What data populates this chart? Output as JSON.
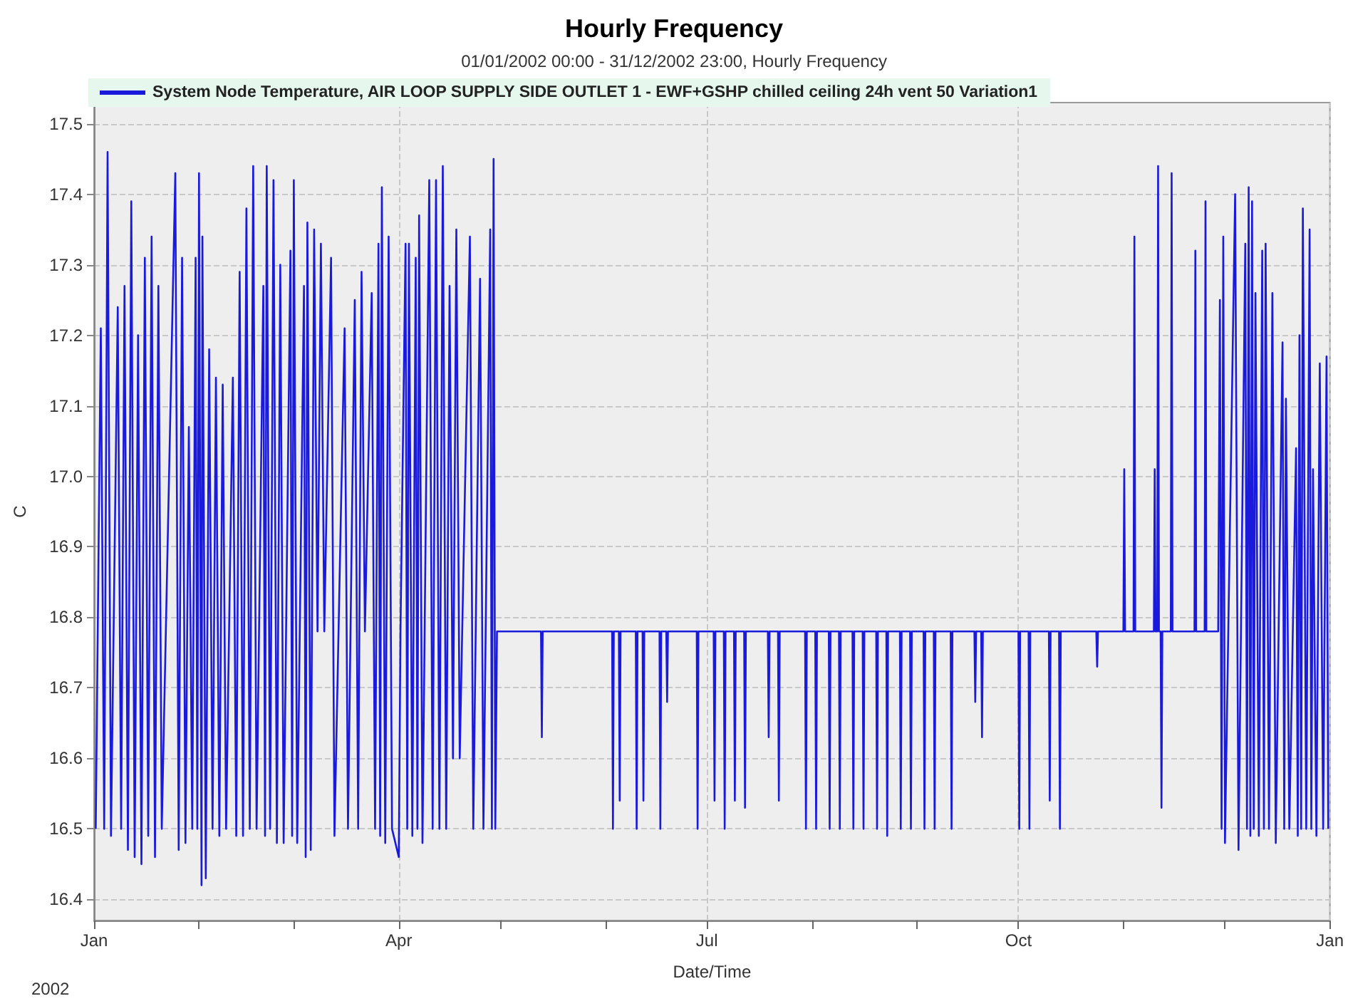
{
  "chart_data": {
    "type": "line",
    "title": "Hourly Frequency",
    "subtitle": "01/01/2002 00:00 - 31/12/2002 23:00, Hourly Frequency",
    "xlabel": "Date/Time",
    "ylabel": "C",
    "annotations": [
      "2002"
    ],
    "xlim": [
      "2002-01-01",
      "2003-01-01"
    ],
    "xticks": [
      {
        "value": "2002-01-01",
        "label": "Jan"
      },
      {
        "value": "2002-02-01",
        "label": null
      },
      {
        "value": "2002-03-01",
        "label": null
      },
      {
        "value": "2002-04-01",
        "label": "Apr"
      },
      {
        "value": "2002-05-01",
        "label": null
      },
      {
        "value": "2002-06-01",
        "label": null
      },
      {
        "value": "2002-07-01",
        "label": "Jul"
      },
      {
        "value": "2002-08-01",
        "label": null
      },
      {
        "value": "2002-09-01",
        "label": null
      },
      {
        "value": "2002-10-01",
        "label": "Oct"
      },
      {
        "value": "2002-11-01",
        "label": null
      },
      {
        "value": "2002-12-01",
        "label": null
      },
      {
        "value": "2003-01-01",
        "label": "Jan"
      }
    ],
    "ylim": [
      16.37,
      17.53
    ],
    "yticks": [
      16.4,
      16.5,
      16.6,
      16.7,
      16.8,
      16.9,
      {
        "value": 17,
        "label": "17.0"
      },
      17.1,
      17.2,
      17.3,
      17.4,
      17.5
    ],
    "grid": true,
    "legend": "top",
    "marker": "none",
    "line_style": "solid",
    "series": [
      {
        "name": "System Node Temperature, AIR LOOP SUPPLY SIDE OUTLET 1 - EWF+GSHP chilled ceiling 24h vent 50 Variation1",
        "color": "#1a1adc",
        "x": [
          "2002-01-01T12:00",
          "2002-01-03",
          "2002-01-04",
          "2002-01-05",
          "2002-01-06",
          "2002-01-08",
          "2002-01-09",
          "2002-01-10",
          "2002-01-11",
          "2002-01-12",
          "2002-01-13",
          "2002-01-14",
          "2002-01-15",
          "2002-01-16",
          "2002-01-17",
          "2002-01-18",
          "2002-01-19",
          "2002-01-20",
          "2002-01-21",
          "2002-01-25",
          "2002-01-26",
          "2002-01-27",
          "2002-01-28",
          "2002-01-29",
          "2002-01-30",
          "2002-01-31",
          "2002-01-31T12:00",
          "2002-02-01",
          "2002-02-01T18:00",
          "2002-02-02",
          "2002-02-03",
          "2002-02-04",
          "2002-02-05",
          "2002-02-06",
          "2002-02-07",
          "2002-02-08",
          "2002-02-09",
          "2002-02-11",
          "2002-02-12",
          "2002-02-13",
          "2002-02-14",
          "2002-02-15",
          "2002-02-16",
          "2002-02-17",
          "2002-02-18",
          "2002-02-20",
          "2002-02-20T12:00",
          "2002-02-21",
          "2002-02-22",
          "2002-02-23",
          "2002-02-24",
          "2002-02-25",
          "2002-02-26",
          "2002-02-28",
          "2002-02-28T12:00",
          "2002-03-01",
          "2002-03-02",
          "2002-03-04",
          "2002-03-04T12:00",
          "2002-03-05",
          "2002-03-06",
          "2002-03-07",
          "2002-03-08",
          "2002-03-09",
          "2002-03-10",
          "2002-03-12",
          "2002-03-13",
          "2002-03-16",
          "2002-03-17",
          "2002-03-19",
          "2002-03-20",
          "2002-03-21",
          "2002-03-22",
          "2002-03-24",
          "2002-03-25",
          "2002-03-26",
          "2002-03-26T12:00",
          "2002-03-27",
          "2002-03-28",
          "2002-03-29",
          "2002-03-30",
          "2002-04-01",
          "2002-04-01T12:00",
          "2002-04-03",
          "2002-04-03T12:00",
          "2002-04-04",
          "2002-04-05",
          "2002-04-06",
          "2002-04-06T12:00",
          "2002-04-07",
          "2002-04-08",
          "2002-04-10",
          "2002-04-11",
          "2002-04-12",
          "2002-04-13",
          "2002-04-14",
          "2002-04-15",
          "2002-04-16",
          "2002-04-17",
          "2002-04-18",
          "2002-04-19",
          "2002-04-22",
          "2002-04-23",
          "2002-04-25",
          "2002-04-26",
          "2002-04-28",
          "2002-04-28T12:00",
          "2002-04-29",
          "2002-04-29T12:00",
          "2002-04-30",
          "2002-05-13",
          "2002-05-13T06:00",
          "2002-05-13T12:00",
          "2002-06-03",
          "2002-06-03T06:00",
          "2002-06-03T12:00",
          "2002-06-05",
          "2002-06-05T06:00",
          "2002-06-05T12:00",
          "2002-06-10",
          "2002-06-10T06:00",
          "2002-06-10T12:00",
          "2002-06-12",
          "2002-06-12T06:00",
          "2002-06-12T12:00",
          "2002-06-17",
          "2002-06-17T06:00",
          "2002-06-17T12:00",
          "2002-06-19",
          "2002-06-19T06:00",
          "2002-06-19T12:00",
          "2002-06-28",
          "2002-06-28T06:00",
          "2002-06-28T12:00",
          "2002-07-03",
          "2002-07-03T06:00",
          "2002-07-03T12:00",
          "2002-07-06",
          "2002-07-06T06:00",
          "2002-07-06T12:00",
          "2002-07-09",
          "2002-07-09T06:00",
          "2002-07-09T12:00",
          "2002-07-12",
          "2002-07-12T06:00",
          "2002-07-12T12:00",
          "2002-07-19",
          "2002-07-19T06:00",
          "2002-07-19T12:00",
          "2002-07-22",
          "2002-07-22T06:00",
          "2002-07-22T12:00",
          "2002-07-30",
          "2002-07-30T06:00",
          "2002-07-30T12:00",
          "2002-08-02",
          "2002-08-02T06:00",
          "2002-08-02T12:00",
          "2002-08-06",
          "2002-08-06T06:00",
          "2002-08-06T12:00",
          "2002-08-09",
          "2002-08-09T06:00",
          "2002-08-09T12:00",
          "2002-08-13",
          "2002-08-13T06:00",
          "2002-08-13T12:00",
          "2002-08-16",
          "2002-08-16T06:00",
          "2002-08-16T12:00",
          "2002-08-20",
          "2002-08-20T06:00",
          "2002-08-20T12:00",
          "2002-08-23",
          "2002-08-23T06:00",
          "2002-08-23T12:00",
          "2002-08-27",
          "2002-08-27T06:00",
          "2002-08-27T12:00",
          "2002-08-30",
          "2002-08-30T06:00",
          "2002-08-30T12:00",
          "2002-09-03",
          "2002-09-03T06:00",
          "2002-09-03T12:00",
          "2002-09-06",
          "2002-09-06T06:00",
          "2002-09-06T12:00",
          "2002-09-11",
          "2002-09-11T06:00",
          "2002-09-11T12:00",
          "2002-09-18",
          "2002-09-18T06:00",
          "2002-09-18T12:00",
          "2002-09-20",
          "2002-09-20T06:00",
          "2002-09-20T12:00",
          "2002-10-01",
          "2002-10-01T06:00",
          "2002-10-01T12:00",
          "2002-10-04",
          "2002-10-04T06:00",
          "2002-10-04T12:00",
          "2002-10-10",
          "2002-10-10T06:00",
          "2002-10-10T12:00",
          "2002-10-13",
          "2002-10-13T06:00",
          "2002-10-13T12:00",
          "2002-10-24",
          "2002-10-24T06:00",
          "2002-10-24T12:00",
          "2002-11-01",
          "2002-11-01T06:00",
          "2002-11-01T12:00",
          "2002-11-04",
          "2002-11-04T06:00",
          "2002-11-04T12:00",
          "2002-11-10",
          "2002-11-10T06:00",
          "2002-11-10T12:00",
          "2002-11-11",
          "2002-11-11T06:00",
          "2002-11-11T12:00",
          "2002-11-12",
          "2002-11-12T06:00",
          "2002-11-12T12:00",
          "2002-11-15",
          "2002-11-15T06:00",
          "2002-11-15T12:00",
          "2002-11-22",
          "2002-11-22T06:00",
          "2002-11-22T12:00",
          "2002-11-25",
          "2002-11-25T06:00",
          "2002-11-25T12:00",
          "2002-11-29",
          "2002-11-29T12:00",
          "2002-11-30",
          "2002-11-30T12:00",
          "2002-12-01",
          "2002-12-04",
          "2002-12-05",
          "2002-12-07",
          "2002-12-07T12:00",
          "2002-12-08",
          "2002-12-08T12:00",
          "2002-12-09",
          "2002-12-09T12:00",
          "2002-12-10",
          "2002-12-11",
          "2002-12-12",
          "2002-12-12T12:00",
          "2002-12-13",
          "2002-12-14",
          "2002-12-15",
          "2002-12-16",
          "2002-12-18",
          "2002-12-18T12:00",
          "2002-12-19",
          "2002-12-20",
          "2002-12-22",
          "2002-12-22T12:00",
          "2002-12-23",
          "2002-12-23T12:00",
          "2002-12-24",
          "2002-12-25",
          "2002-12-26",
          "2002-12-26T12:00",
          "2002-12-27",
          "2002-12-28",
          "2002-12-29",
          "2002-12-30",
          "2002-12-31",
          "2002-12-31T12:00"
        ],
        "values": [
          16.5,
          17.21,
          16.5,
          17.46,
          16.49,
          17.24,
          16.5,
          17.27,
          16.47,
          17.39,
          16.46,
          17.2,
          16.45,
          17.31,
          16.49,
          17.34,
          16.46,
          17.27,
          16.5,
          17.43,
          16.47,
          17.31,
          16.48,
          17.07,
          16.5,
          17.31,
          16.5,
          17.43,
          16.42,
          17.34,
          16.43,
          17.18,
          16.5,
          17.14,
          16.49,
          17.13,
          16.5,
          17.14,
          16.49,
          17.29,
          16.49,
          17.38,
          16.5,
          17.44,
          16.5,
          17.27,
          16.49,
          17.44,
          16.5,
          17.42,
          16.48,
          17.3,
          16.48,
          17.32,
          16.49,
          17.42,
          16.48,
          17.27,
          16.46,
          17.36,
          16.47,
          17.35,
          16.78,
          17.33,
          16.78,
          17.31,
          16.49,
          17.21,
          16.5,
          17.25,
          16.5,
          17.29,
          16.78,
          17.26,
          16.5,
          17.33,
          16.49,
          17.41,
          16.48,
          17.34,
          16.5,
          16.46,
          16.78,
          17.33,
          16.5,
          17.33,
          16.49,
          17.31,
          16.5,
          17.37,
          16.48,
          17.42,
          16.5,
          17.42,
          16.5,
          17.44,
          16.5,
          17.27,
          16.6,
          17.35,
          16.6,
          17.34,
          16.5,
          17.28,
          16.5,
          17.35,
          16.5,
          17.45,
          16.5,
          16.78,
          16.78,
          16.63,
          16.78,
          16.78,
          16.5,
          16.78,
          16.78,
          16.54,
          16.78,
          16.78,
          16.5,
          16.78,
          16.78,
          16.54,
          16.78,
          16.78,
          16.5,
          16.78,
          16.78,
          16.68,
          16.78,
          16.78,
          16.5,
          16.78,
          16.78,
          16.54,
          16.78,
          16.78,
          16.5,
          16.78,
          16.78,
          16.54,
          16.78,
          16.78,
          16.53,
          16.78,
          16.78,
          16.63,
          16.78,
          16.78,
          16.54,
          16.78,
          16.78,
          16.5,
          16.78,
          16.78,
          16.5,
          16.78,
          16.78,
          16.5,
          16.78,
          16.78,
          16.5,
          16.78,
          16.78,
          16.5,
          16.78,
          16.78,
          16.5,
          16.78,
          16.78,
          16.5,
          16.78,
          16.78,
          16.49,
          16.78,
          16.78,
          16.5,
          16.78,
          16.78,
          16.5,
          16.78,
          16.78,
          16.5,
          16.78,
          16.78,
          16.5,
          16.78,
          16.78,
          16.5,
          16.78,
          16.78,
          16.68,
          16.78,
          16.78,
          16.63,
          16.78,
          16.78,
          16.5,
          16.78,
          16.78,
          16.5,
          16.78,
          16.78,
          16.54,
          16.78,
          16.78,
          16.5,
          16.78,
          16.78,
          16.73,
          16.78,
          16.78,
          17.01,
          16.78,
          16.78,
          17.34,
          16.78,
          16.78,
          17.01,
          16.78,
          16.78,
          17.44,
          16.78,
          16.78,
          16.53,
          16.78,
          16.78,
          17.43,
          16.78,
          16.78,
          17.32,
          16.78,
          16.78,
          17.39,
          16.78,
          16.78,
          17.25,
          16.5,
          17.34,
          16.48,
          17.4,
          16.47,
          17.33,
          16.5,
          17.41,
          16.49,
          17.39,
          16.5,
          17.26,
          16.49,
          17.32,
          16.5,
          17.33,
          16.5,
          17.26,
          16.48,
          17.19,
          16.5,
          17.11,
          16.5,
          17.04,
          16.49,
          17.2,
          16.5,
          17.38,
          16.5,
          17.35,
          16.5,
          17.01,
          16.49,
          17.16,
          16.5,
          17.17,
          16.5
        ]
      }
    ]
  }
}
